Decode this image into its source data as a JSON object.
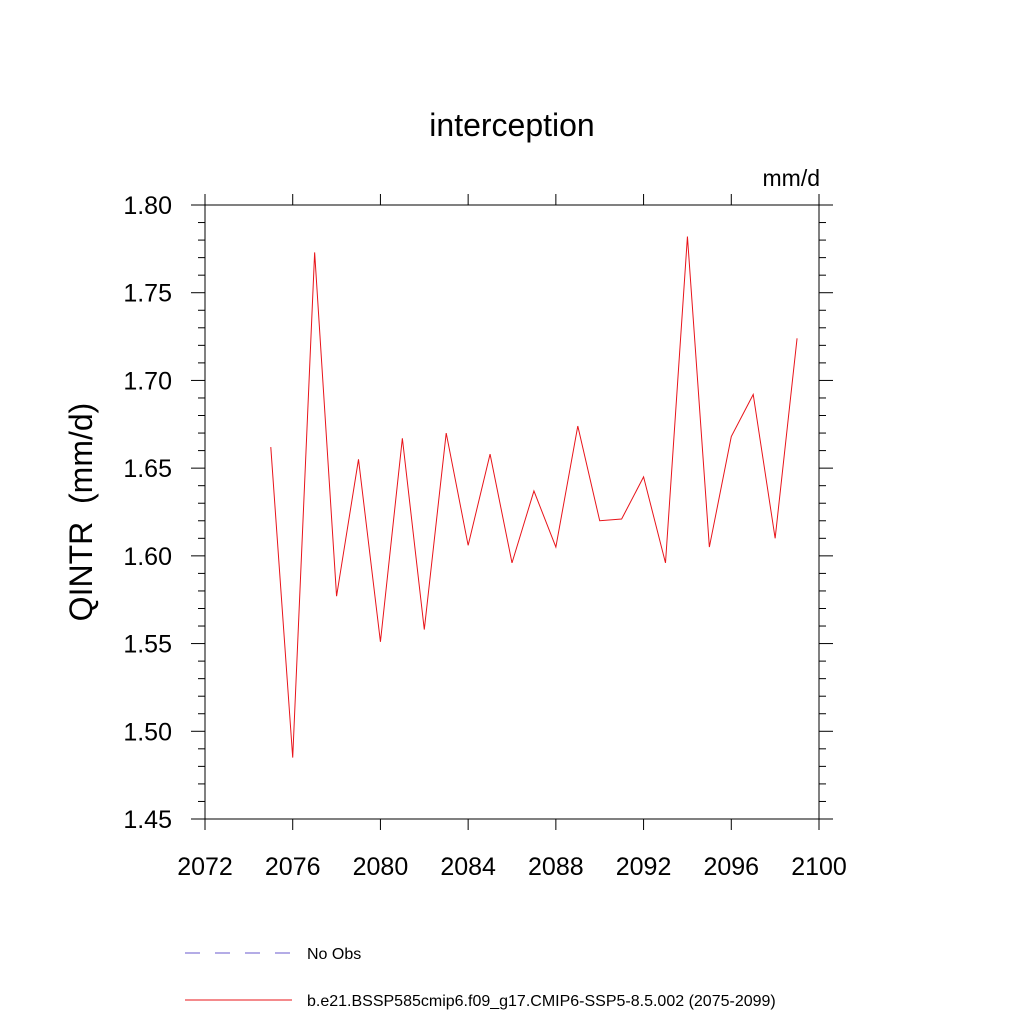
{
  "chart_data": {
    "type": "line",
    "title": "interception",
    "units": "mm/d",
    "ylabel": "QINTR  (mm/d)",
    "xlabel": "",
    "xlim": [
      2072,
      2100
    ],
    "ylim": [
      1.45,
      1.8
    ],
    "x_ticks": [
      2072,
      2076,
      2080,
      2084,
      2088,
      2092,
      2096,
      2100
    ],
    "x_tick_labels": [
      "2072",
      "2076",
      "2080",
      "2084",
      "2088",
      "2092",
      "2096",
      "2100"
    ],
    "y_ticks": [
      1.45,
      1.5,
      1.55,
      1.6,
      1.65,
      1.7,
      1.75,
      1.8
    ],
    "y_tick_labels": [
      "1.45",
      "1.50",
      "1.55",
      "1.60",
      "1.65",
      "1.70",
      "1.75",
      "1.80"
    ],
    "grid": false,
    "legend_placement": "bottom",
    "series": [
      {
        "name": "b.e21.BSSP585cmip6.f09_g17.CMIP6-SSP5-8.5.002 (2075-2099)",
        "color": "#e8141a",
        "style": "solid",
        "x": [
          2075,
          2076,
          2077,
          2078,
          2079,
          2080,
          2081,
          2082,
          2083,
          2084,
          2085,
          2086,
          2087,
          2088,
          2089,
          2090,
          2091,
          2092,
          2093,
          2094,
          2095,
          2096,
          2097,
          2098,
          2099
        ],
        "y": [
          1.662,
          1.485,
          1.773,
          1.577,
          1.655,
          1.551,
          1.667,
          1.558,
          1.67,
          1.606,
          1.658,
          1.596,
          1.637,
          1.605,
          1.674,
          1.62,
          1.621,
          1.645,
          1.596,
          1.782,
          1.605,
          1.668,
          1.692,
          1.61,
          1.724
        ]
      }
    ],
    "legend": [
      {
        "label": "No Obs",
        "color": "#6a5acd",
        "style": "dashed"
      },
      {
        "label": "b.e21.BSSP585cmip6.f09_g17.CMIP6-SSP5-8.5.002 (2075-2099)",
        "color": "#e8141a",
        "style": "solid"
      }
    ]
  }
}
